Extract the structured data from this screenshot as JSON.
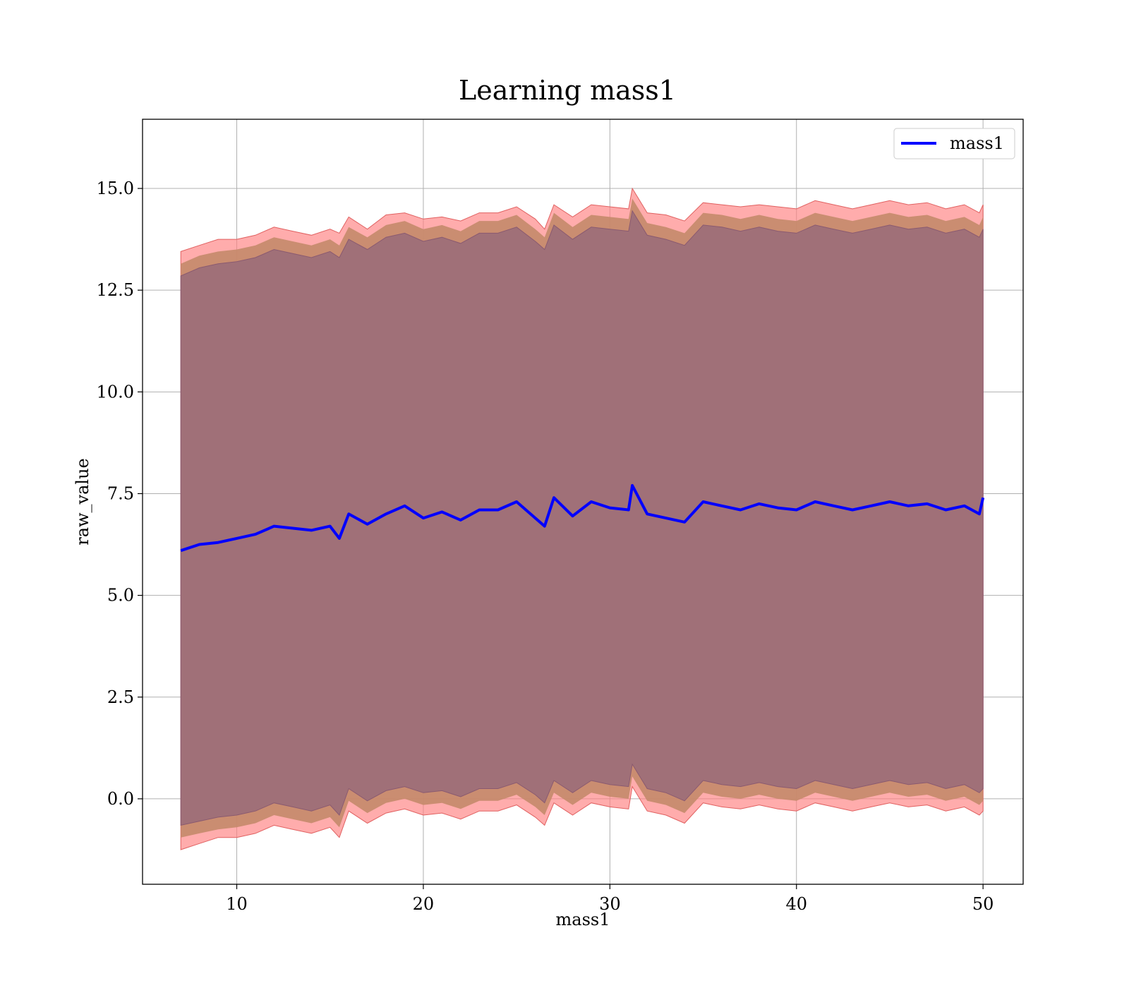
{
  "chart_data": {
    "type": "line",
    "title": "Learning mass1",
    "xlabel": "mass1",
    "ylabel": "raw_value",
    "xlim": [
      4.95,
      52.15
    ],
    "ylim": [
      -2.1,
      16.7
    ],
    "xticks": [
      10,
      20,
      30,
      40,
      50
    ],
    "xtick_labels": [
      "10",
      "20",
      "30",
      "40",
      "50"
    ],
    "yticks": [
      0.0,
      2.5,
      5.0,
      7.5,
      10.0,
      12.5,
      15.0
    ],
    "ytick_labels": [
      "0.0",
      "2.5",
      "5.0",
      "7.5",
      "10.0",
      "12.5",
      "15.0"
    ],
    "grid": true,
    "legend": {
      "position": "top-right",
      "entries": [
        "mass1"
      ]
    },
    "colors": {
      "line": "#0000ff",
      "band_outer": "#ff7f7f",
      "band_middle": "#c4896a",
      "band_inner": "#a07078"
    },
    "x": [
      7.0,
      8.0,
      9.0,
      10.0,
      11.0,
      12.0,
      13.0,
      14.0,
      15.0,
      15.5,
      16.0,
      17.0,
      18.0,
      19.0,
      20.0,
      21.0,
      22.0,
      23.0,
      24.0,
      25.0,
      26.0,
      26.5,
      27.0,
      28.0,
      29.0,
      30.0,
      31.0,
      31.2,
      32.0,
      33.0,
      34.0,
      35.0,
      36.0,
      37.0,
      38.0,
      39.0,
      40.0,
      41.0,
      42.0,
      43.0,
      44.0,
      45.0,
      46.0,
      47.0,
      48.0,
      49.0,
      49.8,
      50.0
    ],
    "series": [
      {
        "name": "mass1",
        "values": [
          6.1,
          6.25,
          6.3,
          6.4,
          6.5,
          6.7,
          6.65,
          6.6,
          6.7,
          6.4,
          7.0,
          6.75,
          7.0,
          7.2,
          6.9,
          7.05,
          6.85,
          7.1,
          7.1,
          7.3,
          6.9,
          6.7,
          7.4,
          6.95,
          7.3,
          7.15,
          7.1,
          7.7,
          7.0,
          6.9,
          6.8,
          7.3,
          7.2,
          7.1,
          7.25,
          7.15,
          7.1,
          7.3,
          7.2,
          7.1,
          7.2,
          7.3,
          7.2,
          7.25,
          7.1,
          7.2,
          7.0,
          7.4
        ]
      }
    ],
    "band_outer_upper": [
      13.45,
      13.6,
      13.75,
      13.75,
      13.85,
      14.05,
      13.95,
      13.85,
      14.0,
      13.9,
      14.3,
      14.0,
      14.35,
      14.4,
      14.25,
      14.3,
      14.2,
      14.4,
      14.4,
      14.55,
      14.25,
      14.0,
      14.6,
      14.3,
      14.6,
      14.55,
      14.5,
      15.0,
      14.4,
      14.35,
      14.2,
      14.65,
      14.6,
      14.55,
      14.6,
      14.55,
      14.5,
      14.7,
      14.6,
      14.5,
      14.6,
      14.7,
      14.6,
      14.65,
      14.5,
      14.6,
      14.4,
      14.6
    ],
    "band_outer_lower": [
      -1.25,
      -1.1,
      -0.95,
      -0.95,
      -0.85,
      -0.65,
      -0.75,
      -0.85,
      -0.7,
      -0.95,
      -0.3,
      -0.6,
      -0.35,
      -0.25,
      -0.4,
      -0.35,
      -0.5,
      -0.3,
      -0.3,
      -0.15,
      -0.45,
      -0.65,
      -0.1,
      -0.4,
      -0.1,
      -0.2,
      -0.25,
      0.3,
      -0.3,
      -0.4,
      -0.6,
      -0.1,
      -0.2,
      -0.25,
      -0.15,
      -0.25,
      -0.3,
      -0.1,
      -0.2,
      -0.3,
      -0.2,
      -0.1,
      -0.2,
      -0.15,
      -0.3,
      -0.2,
      -0.4,
      -0.3
    ],
    "band_middle_upper": [
      13.15,
      13.35,
      13.45,
      13.5,
      13.6,
      13.8,
      13.7,
      13.6,
      13.75,
      13.6,
      14.05,
      13.8,
      14.1,
      14.2,
      14.0,
      14.1,
      13.95,
      14.2,
      14.2,
      14.35,
      14.0,
      13.8,
      14.4,
      14.05,
      14.35,
      14.3,
      14.25,
      14.75,
      14.15,
      14.05,
      13.9,
      14.4,
      14.35,
      14.25,
      14.35,
      14.25,
      14.2,
      14.4,
      14.3,
      14.2,
      14.3,
      14.4,
      14.3,
      14.35,
      14.2,
      14.3,
      14.1,
      14.3
    ],
    "band_middle_lower": [
      -0.95,
      -0.85,
      -0.75,
      -0.7,
      -0.6,
      -0.4,
      -0.5,
      -0.6,
      -0.45,
      -0.7,
      -0.05,
      -0.35,
      -0.1,
      0.0,
      -0.15,
      -0.1,
      -0.25,
      -0.05,
      -0.05,
      0.1,
      -0.2,
      -0.4,
      0.15,
      -0.15,
      0.15,
      0.05,
      0.0,
      0.55,
      -0.05,
      -0.15,
      -0.35,
      0.15,
      0.05,
      0.0,
      0.1,
      0.0,
      -0.05,
      0.15,
      0.05,
      -0.05,
      0.05,
      0.15,
      0.05,
      0.1,
      -0.05,
      0.05,
      -0.15,
      -0.05
    ],
    "band_inner_upper": [
      12.85,
      13.05,
      13.15,
      13.2,
      13.3,
      13.5,
      13.4,
      13.3,
      13.45,
      13.3,
      13.75,
      13.5,
      13.8,
      13.9,
      13.7,
      13.8,
      13.65,
      13.9,
      13.9,
      14.05,
      13.7,
      13.5,
      14.1,
      13.75,
      14.05,
      14.0,
      13.95,
      14.45,
      13.85,
      13.75,
      13.6,
      14.1,
      14.05,
      13.95,
      14.05,
      13.95,
      13.9,
      14.1,
      14.0,
      13.9,
      14.0,
      14.1,
      14.0,
      14.05,
      13.9,
      14.0,
      13.8,
      14.0
    ],
    "band_inner_lower": [
      -0.65,
      -0.55,
      -0.45,
      -0.4,
      -0.3,
      -0.1,
      -0.2,
      -0.3,
      -0.15,
      -0.4,
      0.25,
      -0.05,
      0.2,
      0.3,
      0.15,
      0.2,
      0.05,
      0.25,
      0.25,
      0.4,
      0.1,
      -0.1,
      0.45,
      0.15,
      0.45,
      0.35,
      0.3,
      0.85,
      0.25,
      0.15,
      -0.05,
      0.45,
      0.35,
      0.3,
      0.4,
      0.3,
      0.25,
      0.45,
      0.35,
      0.25,
      0.35,
      0.45,
      0.35,
      0.4,
      0.25,
      0.35,
      0.15,
      0.25
    ]
  }
}
